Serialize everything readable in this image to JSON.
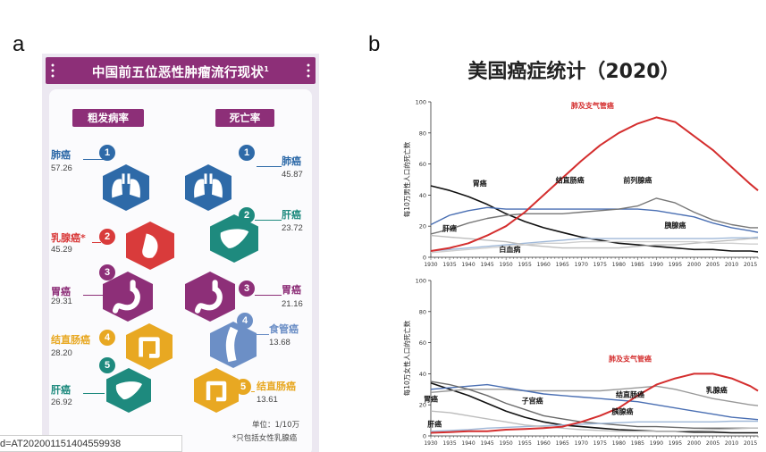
{
  "panel_a": {
    "letter": "a",
    "title": "中国前五位恶性肿瘤流行现状",
    "title_superscript": "1",
    "incidence_header": "粗发病率",
    "mortality_header": "死亡率",
    "incidence": [
      {
        "rank": "1",
        "name": "肺癌",
        "value": "57.26",
        "color": "#2e6aa8",
        "icon": "lungs-icon"
      },
      {
        "rank": "2",
        "name": "乳腺癌*",
        "value": "45.29",
        "color": "#d93b3b",
        "icon": "breast-icon"
      },
      {
        "rank": "3",
        "name": "胃癌",
        "value": "29.31",
        "color": "#8d2f78",
        "icon": "stomach-icon"
      },
      {
        "rank": "4",
        "name": "结直肠癌",
        "value": "28.20",
        "color": "#e8a822",
        "icon": "colon-icon"
      },
      {
        "rank": "5",
        "name": "肝癌",
        "value": "26.92",
        "color": "#1e8a7e",
        "icon": "liver-icon"
      }
    ],
    "mortality": [
      {
        "rank": "1",
        "name": "肺癌",
        "value": "45.87",
        "color": "#2e6aa8",
        "icon": "lungs-icon"
      },
      {
        "rank": "2",
        "name": "肝癌",
        "value": "23.72",
        "color": "#1e8a7e",
        "icon": "liver-icon"
      },
      {
        "rank": "3",
        "name": "胃癌",
        "value": "21.16",
        "color": "#8d2f78",
        "icon": "stomach-icon"
      },
      {
        "rank": "4",
        "name": "食管癌",
        "value": "13.68",
        "color": "#6c8fc6",
        "icon": "esophagus-icon"
      },
      {
        "rank": "5",
        "name": "结直肠癌",
        "value": "13.61",
        "color": "#e8a822",
        "icon": "colon-icon"
      }
    ],
    "unit": "单位：1/10万",
    "note": "*只包括女性乳腺癌"
  },
  "url_fragment": "d=AT202001151404559938",
  "panel_b": {
    "letter": "b",
    "title": "美国癌症统计（2020）"
  },
  "chart_data": [
    {
      "type": "line",
      "panel": "male",
      "ylabel": "每10万男性人口的死亡数",
      "ylim": [
        0,
        100
      ],
      "yticks": [
        0,
        20,
        40,
        60,
        80,
        100
      ],
      "xlim": [
        1930,
        2017
      ],
      "xticks": [
        1930,
        1935,
        1940,
        1945,
        1950,
        1955,
        1960,
        1965,
        1970,
        1975,
        1980,
        1985,
        1990,
        1995,
        2000,
        2005,
        2010,
        2015
      ],
      "series": [
        {
          "name": "肺及支气管癌",
          "color": "#d42e2e",
          "x": [
            1930,
            1935,
            1940,
            1945,
            1950,
            1955,
            1960,
            1965,
            1970,
            1975,
            1980,
            1985,
            1990,
            1995,
            2000,
            2005,
            2010,
            2015,
            2017
          ],
          "y": [
            4,
            6,
            9,
            14,
            20,
            29,
            40,
            51,
            62,
            72,
            80,
            86,
            90,
            87,
            78,
            69,
            58,
            47,
            43
          ]
        },
        {
          "name": "胃癌",
          "color": "#111111",
          "x": [
            1930,
            1935,
            1940,
            1945,
            1950,
            1955,
            1960,
            1965,
            1970,
            1975,
            1980,
            1985,
            1990,
            1995,
            2000,
            2005,
            2010,
            2015,
            2017
          ],
          "y": [
            46,
            43,
            39,
            34,
            28,
            23,
            19,
            16,
            13,
            11,
            9,
            8,
            7,
            6,
            5,
            5,
            4,
            4,
            3.5
          ]
        },
        {
          "name": "结直肠癌",
          "color": "#4a6fb3",
          "x": [
            1930,
            1935,
            1940,
            1945,
            1950,
            1955,
            1960,
            1965,
            1970,
            1975,
            1980,
            1985,
            1990,
            1995,
            2000,
            2005,
            2010,
            2015,
            2017
          ],
          "y": [
            21,
            27,
            30,
            32,
            31,
            31,
            31,
            31,
            31,
            31,
            31,
            31,
            30,
            28,
            26,
            22,
            19,
            17,
            16
          ]
        },
        {
          "name": "前列腺癌",
          "color": "#777777",
          "x": [
            1930,
            1935,
            1940,
            1945,
            1950,
            1955,
            1960,
            1965,
            1970,
            1975,
            1980,
            1985,
            1990,
            1995,
            2000,
            2005,
            2010,
            2015,
            2017
          ],
          "y": [
            15,
            18,
            22,
            25,
            27,
            28,
            28,
            28,
            29,
            30,
            31,
            33,
            38,
            35,
            29,
            24,
            21,
            19,
            19
          ]
        },
        {
          "name": "胰腺癌",
          "color": "#9fb8d8",
          "x": [
            1930,
            1935,
            1940,
            1945,
            1950,
            1955,
            1960,
            1965,
            1970,
            1975,
            1980,
            1985,
            1990,
            1995,
            2000,
            2005,
            2010,
            2015,
            2017
          ],
          "y": [
            4,
            5,
            6,
            7,
            8,
            9,
            10,
            11,
            12,
            12,
            12,
            12,
            12,
            12,
            12,
            12,
            12.5,
            12.5,
            13
          ]
        },
        {
          "name": "肝癌",
          "color": "#bdbdbd",
          "x": [
            1930,
            1935,
            1940,
            1945,
            1950,
            1955,
            1960,
            1965,
            1970,
            1975,
            1980,
            1985,
            1990,
            1995,
            2000,
            2005,
            2010,
            2015,
            2017
          ],
          "y": [
            14,
            13,
            12,
            11,
            10,
            8,
            7,
            6,
            6,
            6,
            6,
            7,
            8,
            8,
            9,
            10,
            11,
            12,
            12
          ]
        },
        {
          "name": "白血病",
          "color": "#cfcfcf",
          "x": [
            1930,
            1935,
            1940,
            1945,
            1950,
            1955,
            1960,
            1965,
            1970,
            1975,
            1980,
            1985,
            1990,
            1995,
            2000,
            2005,
            2010,
            2015,
            2017
          ],
          "y": [
            3,
            4,
            5,
            6,
            7,
            8,
            9,
            9,
            10,
            10,
            10,
            10,
            10,
            10,
            10,
            9,
            9,
            8.5,
            8.5
          ]
        }
      ]
    },
    {
      "type": "line",
      "panel": "female",
      "ylabel": "每10万女性人口的死亡数",
      "ylim": [
        0,
        100
      ],
      "yticks": [
        0,
        20,
        40,
        60,
        80,
        100
      ],
      "xlim": [
        1930,
        2017
      ],
      "xticks": [
        1930,
        1935,
        1940,
        1945,
        1950,
        1955,
        1960,
        1965,
        1970,
        1975,
        1980,
        1985,
        1990,
        1995,
        2000,
        2005,
        2010,
        2015
      ],
      "series": [
        {
          "name": "肺及支气管癌",
          "color": "#d42e2e",
          "x": [
            1930,
            1935,
            1940,
            1945,
            1950,
            1955,
            1960,
            1965,
            1970,
            1975,
            1980,
            1985,
            1990,
            1995,
            2000,
            2005,
            2010,
            2015,
            2017
          ],
          "y": [
            2,
            2.5,
            3,
            3,
            4,
            4.5,
            5,
            6,
            9,
            13,
            18,
            26,
            33,
            37,
            40,
            40,
            37,
            32,
            29
          ]
        },
        {
          "name": "胃癌",
          "color": "#111111",
          "x": [
            1930,
            1935,
            1940,
            1945,
            1950,
            1955,
            1960,
            1965,
            1970,
            1975,
            1980,
            1985,
            1990,
            1995,
            2000,
            2005,
            2010,
            2015,
            2017
          ],
          "y": [
            34,
            30,
            26,
            21,
            16,
            12,
            9,
            7,
            6,
            5,
            4,
            3.5,
            3,
            3,
            2.5,
            2.5,
            2,
            2,
            2
          ]
        },
        {
          "name": "乳腺癌",
          "color": "#999999",
          "x": [
            1930,
            1935,
            1940,
            1945,
            1950,
            1955,
            1960,
            1965,
            1970,
            1975,
            1980,
            1985,
            1990,
            1995,
            2000,
            2005,
            2010,
            2015,
            2017
          ],
          "y": [
            28,
            29,
            30,
            30,
            30,
            29,
            29,
            29,
            29,
            29,
            30,
            31,
            32,
            30,
            27,
            24,
            22,
            20,
            19.5
          ]
        },
        {
          "name": "结直肠癌",
          "color": "#4a6fb3",
          "x": [
            1930,
            1935,
            1940,
            1945,
            1950,
            1955,
            1960,
            1965,
            1970,
            1975,
            1980,
            1985,
            1990,
            1995,
            2000,
            2005,
            2010,
            2015,
            2017
          ],
          "y": [
            30,
            31,
            32,
            33,
            31,
            29,
            27,
            26,
            25,
            24,
            23,
            22,
            20,
            18,
            16,
            14,
            12,
            11,
            10.5
          ]
        },
        {
          "name": "子宫癌",
          "color": "#6a6a6a",
          "x": [
            1930,
            1935,
            1940,
            1945,
            1950,
            1955,
            1960,
            1965,
            1970,
            1975,
            1980,
            1985,
            1990,
            1995,
            2000,
            2005,
            2010,
            2015,
            2017
          ],
          "y": [
            35,
            33,
            30,
            26,
            21,
            17,
            13,
            11,
            9,
            8,
            7,
            6,
            6,
            5.5,
            5,
            5,
            5,
            5,
            5
          ]
        },
        {
          "name": "胰腺癌",
          "color": "#9fb8d8",
          "x": [
            1930,
            1935,
            1940,
            1945,
            1950,
            1955,
            1960,
            1965,
            1970,
            1975,
            1980,
            1985,
            1990,
            1995,
            2000,
            2005,
            2010,
            2015,
            2017
          ],
          "y": [
            3,
            3.5,
            4,
            5,
            5.5,
            6,
            6.5,
            7,
            7.5,
            8,
            8.5,
            9,
            9,
            9,
            9,
            9,
            9.5,
            9.5,
            9.5
          ]
        },
        {
          "name": "肝癌",
          "color": "#bdbdbd",
          "x": [
            1930,
            1935,
            1940,
            1945,
            1950,
            1955,
            1960,
            1965,
            1970,
            1975,
            1980,
            1985,
            1990,
            1995,
            2000,
            2005,
            2010,
            2015,
            2017
          ],
          "y": [
            16,
            15,
            13,
            11,
            9,
            7,
            6,
            5,
            4,
            3.5,
            3,
            3,
            3,
            3,
            3.5,
            4,
            4.5,
            5,
            5
          ]
        }
      ],
      "annotations": [
        "胃癌",
        "肝癌",
        "子宫癌",
        "结直肠癌",
        "胰腺癌",
        "乳腺癌",
        "肺及支气管癌"
      ]
    }
  ],
  "chart_labels": {
    "male": [
      {
        "text": "肺及支气管癌",
        "color": "#d42e2e",
        "series": "肺及支气管癌"
      },
      {
        "text": "胃癌",
        "color": "#111111",
        "series": "胃癌"
      },
      {
        "text": "结直肠癌",
        "color": "#111111",
        "series": "结直肠癌"
      },
      {
        "text": "前列腺癌",
        "color": "#111111",
        "series": "前列腺癌"
      },
      {
        "text": "肝癌",
        "color": "#111111",
        "series": "肝癌"
      },
      {
        "text": "胰腺癌",
        "color": "#111111",
        "series": "胰腺癌"
      },
      {
        "text": "白血病",
        "color": "#111111",
        "series": "白血病"
      }
    ],
    "female": [
      {
        "text": "肺及支气管癌",
        "color": "#d42e2e",
        "series": "肺及支气管癌"
      },
      {
        "text": "胃癌",
        "color": "#111111",
        "series": "胃癌"
      },
      {
        "text": "肝癌",
        "color": "#111111",
        "series": "肝癌"
      },
      {
        "text": "子宫癌",
        "color": "#111111",
        "series": "子宫癌"
      },
      {
        "text": "结直肠癌",
        "color": "#111111",
        "series": "结直肠癌"
      },
      {
        "text": "胰腺癌",
        "color": "#111111",
        "series": "胰腺癌"
      },
      {
        "text": "乳腺癌",
        "color": "#111111",
        "series": "乳腺癌"
      }
    ]
  }
}
